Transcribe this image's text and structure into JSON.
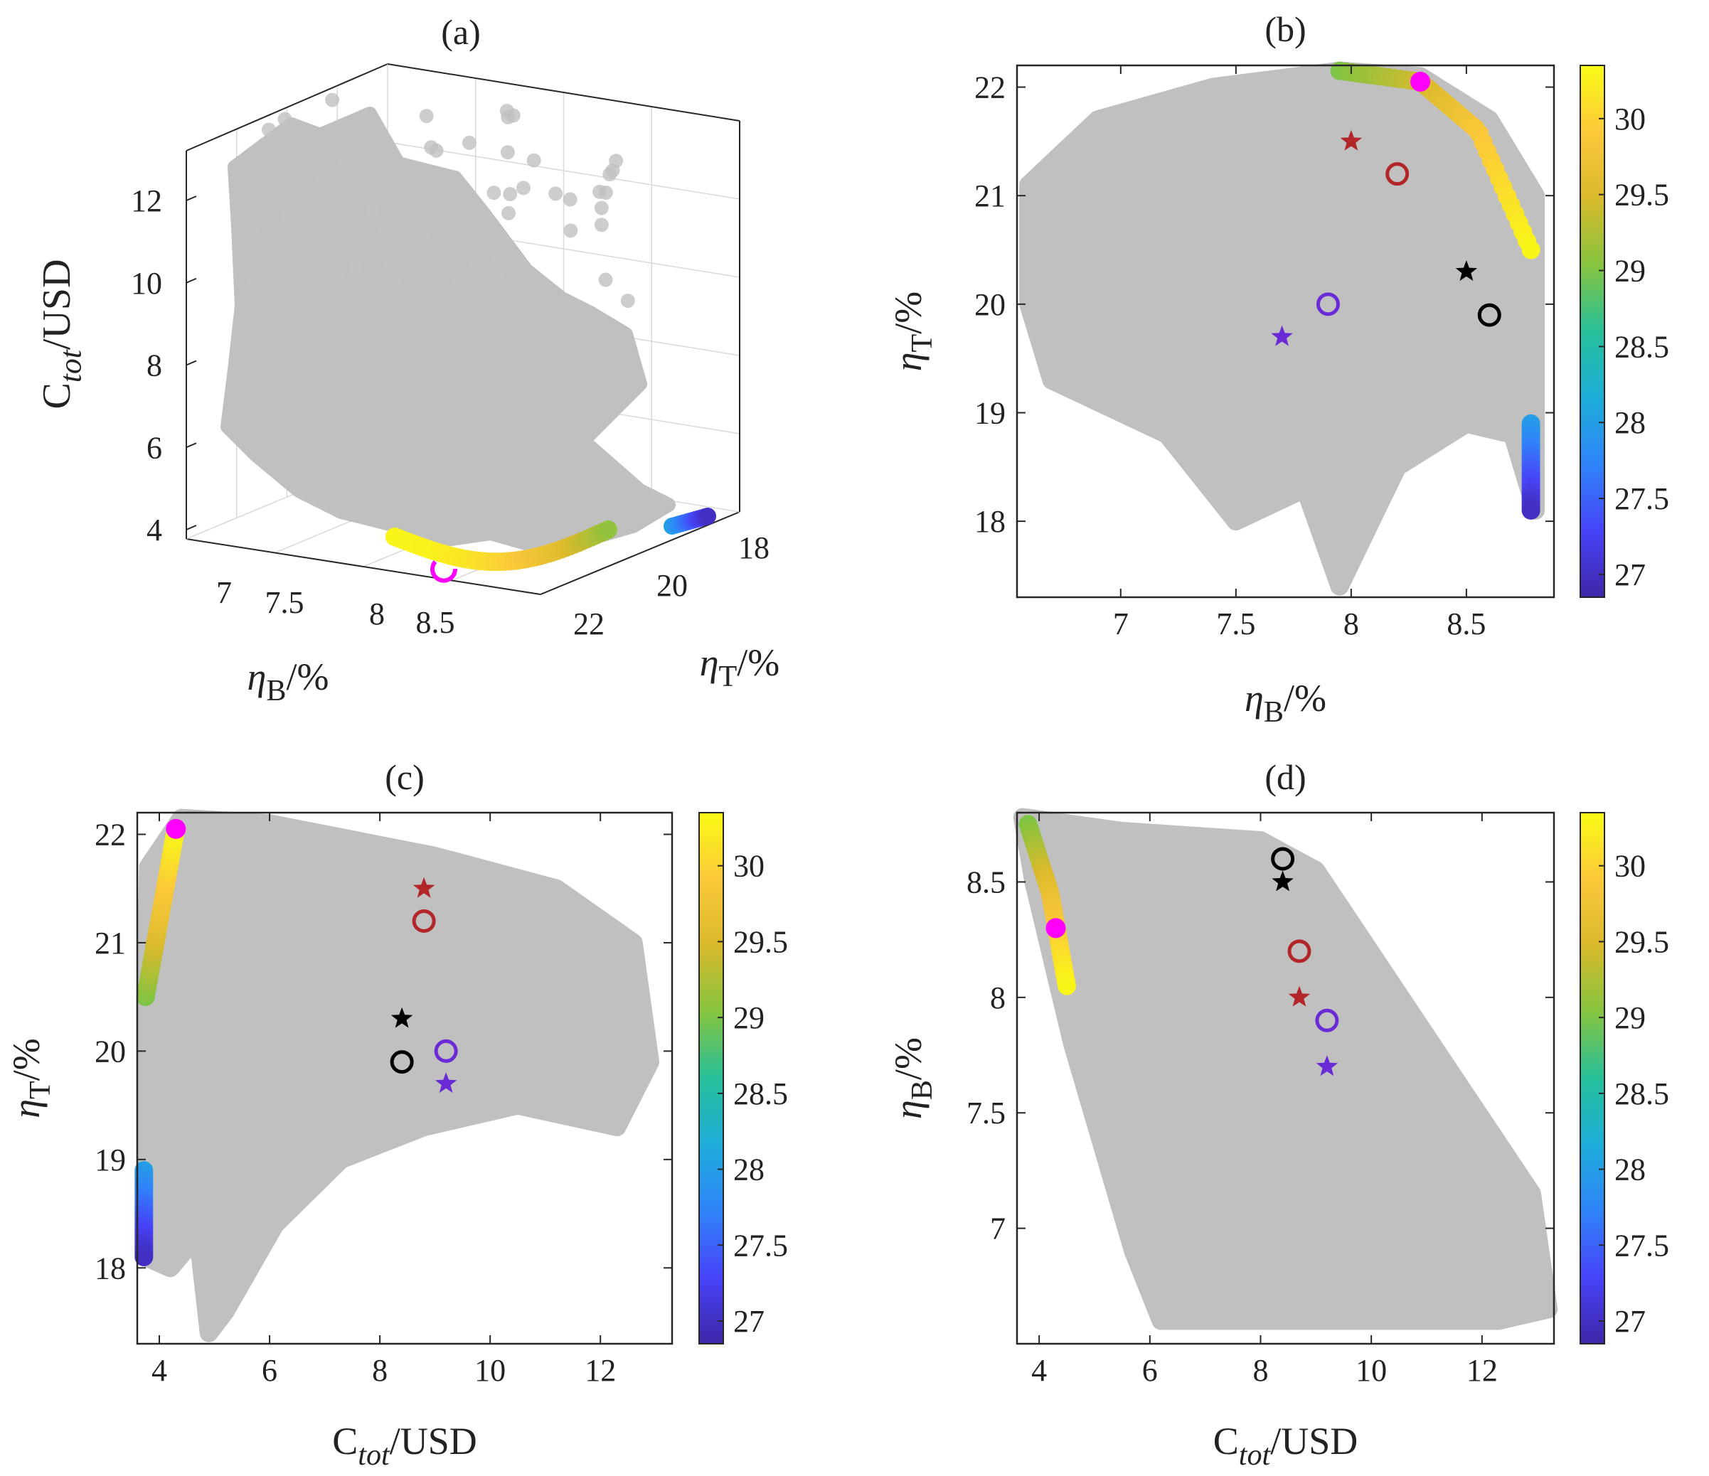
{
  "colors": {
    "cloud": "#c0c0c0",
    "axis": "#262626",
    "grid": "#d9d9d9",
    "magenta": "#ff00ff",
    "red_marker": "#b2262a",
    "black_marker": "#000000",
    "purple_marker": "#6a2bd6",
    "colormap": [
      "#3e26a8",
      "#4743f8",
      "#2f84f9",
      "#1eadd9",
      "#27c09a",
      "#86c43f",
      "#d9ba2c",
      "#fcc93a",
      "#f9fb15"
    ]
  },
  "chart_data": [
    {
      "id": "a",
      "type": "scatter3d",
      "title": "(a)",
      "xlabel": {
        "main": "η",
        "sub": "B",
        "unit": "/%"
      },
      "ylabel": {
        "main": "η",
        "sub": "T",
        "unit": "/%"
      },
      "zlabel": {
        "main": "C",
        "sub": "tot",
        "unit": "/USD"
      },
      "x_ticks": [
        "7",
        "7.5",
        "8",
        "8.5"
      ],
      "y_ticks": [
        "18",
        "20",
        "22"
      ],
      "z_ticks": [
        "4",
        "6",
        "8",
        "10",
        "12"
      ],
      "grid": true,
      "front_color_range": [
        27,
        30.4
      ]
    },
    {
      "id": "b",
      "type": "scatter",
      "title": "(b)",
      "xlabel": {
        "main": "η",
        "sub": "B",
        "unit": "/%"
      },
      "ylabel": {
        "main": "η",
        "sub": "T",
        "unit": "/%"
      },
      "xlim": [
        6.55,
        8.88
      ],
      "ylim": [
        17.3,
        22.2
      ],
      "x_ticks": [
        "7",
        "7.5",
        "8",
        "8.5"
      ],
      "y_ticks": [
        "18",
        "19",
        "20",
        "21",
        "22"
      ],
      "grid": false,
      "colorbar": {
        "min": 26.85,
        "max": 30.35,
        "ticks": [
          "27",
          "27.5",
          "28",
          "28.5",
          "29",
          "29.5",
          "30"
        ]
      },
      "front_segments": [
        {
          "color_from": 29.0,
          "color_to": 30.3,
          "points": [
            [
              7.95,
              22.15
            ],
            [
              8.3,
              22.05
            ],
            [
              8.55,
              21.6
            ],
            [
              8.78,
              20.5
            ]
          ]
        },
        {
          "color_from": 28.0,
          "color_to": 27.0,
          "points": [
            [
              8.78,
              18.9
            ],
            [
              8.78,
              18.1
            ]
          ]
        }
      ],
      "markers": [
        {
          "symbol": "dot",
          "color": "magenta",
          "x": 8.3,
          "y": 22.05
        },
        {
          "symbol": "star",
          "color": "red",
          "x": 8.0,
          "y": 21.5
        },
        {
          "symbol": "circle",
          "color": "red",
          "x": 8.2,
          "y": 21.2
        },
        {
          "symbol": "star",
          "color": "black",
          "x": 8.5,
          "y": 20.3
        },
        {
          "symbol": "circle",
          "color": "black",
          "x": 8.6,
          "y": 19.9
        },
        {
          "symbol": "circle",
          "color": "purple",
          "x": 7.9,
          "y": 20.0
        },
        {
          "symbol": "star",
          "color": "purple",
          "x": 7.7,
          "y": 19.7
        }
      ]
    },
    {
      "id": "c",
      "type": "scatter",
      "title": "(c)",
      "xlabel": {
        "main": "C",
        "sub": "tot",
        "unit": "/USD"
      },
      "ylabel": {
        "main": "η",
        "sub": "T",
        "unit": "/%"
      },
      "xlim": [
        3.6,
        13.3
      ],
      "ylim": [
        17.3,
        22.2
      ],
      "x_ticks": [
        "4",
        "6",
        "8",
        "10",
        "12"
      ],
      "y_ticks": [
        "18",
        "19",
        "20",
        "21",
        "22"
      ],
      "grid": false,
      "colorbar": {
        "min": 26.85,
        "max": 30.35,
        "ticks": [
          "27",
          "27.5",
          "28",
          "28.5",
          "29",
          "29.5",
          "30"
        ]
      },
      "front_segments": [
        {
          "color_from": 29.0,
          "color_to": 30.3,
          "points": [
            [
              3.75,
              20.5
            ],
            [
              4.0,
              21.2
            ],
            [
              4.3,
              22.05
            ]
          ]
        },
        {
          "color_from": 28.0,
          "color_to": 27.0,
          "points": [
            [
              3.72,
              18.9
            ],
            [
              3.72,
              18.1
            ]
          ]
        }
      ],
      "markers": [
        {
          "symbol": "dot",
          "color": "magenta",
          "x": 4.3,
          "y": 22.05
        },
        {
          "symbol": "star",
          "color": "red",
          "x": 8.8,
          "y": 21.5
        },
        {
          "symbol": "circle",
          "color": "red",
          "x": 8.8,
          "y": 21.2
        },
        {
          "symbol": "star",
          "color": "black",
          "x": 8.4,
          "y": 20.3
        },
        {
          "symbol": "circle",
          "color": "black",
          "x": 8.4,
          "y": 19.9
        },
        {
          "symbol": "circle",
          "color": "purple",
          "x": 9.2,
          "y": 20.0
        },
        {
          "symbol": "star",
          "color": "purple",
          "x": 9.2,
          "y": 19.7
        }
      ]
    },
    {
      "id": "d",
      "type": "scatter",
      "title": "(d)",
      "xlabel": {
        "main": "C",
        "sub": "tot",
        "unit": "/USD"
      },
      "ylabel": {
        "main": "η",
        "sub": "B",
        "unit": "/%"
      },
      "xlim": [
        3.6,
        13.3
      ],
      "ylim": [
        6.5,
        8.8
      ],
      "x_ticks": [
        "4",
        "6",
        "8",
        "10",
        "12"
      ],
      "y_ticks": [
        "7",
        "7.5",
        "8",
        "8.5"
      ],
      "grid": false,
      "colorbar": {
        "min": 26.85,
        "max": 30.35,
        "ticks": [
          "27",
          "27.5",
          "28",
          "28.5",
          "29",
          "29.5",
          "30"
        ]
      },
      "front_segments": [
        {
          "color_from": 29.0,
          "color_to": 30.3,
          "points": [
            [
              3.8,
              8.75
            ],
            [
              4.2,
              8.45
            ],
            [
              4.5,
              8.05
            ]
          ]
        }
      ],
      "markers": [
        {
          "symbol": "dot",
          "color": "magenta",
          "x": 4.3,
          "y": 8.3
        },
        {
          "symbol": "circle",
          "color": "black",
          "x": 8.4,
          "y": 8.6
        },
        {
          "symbol": "star",
          "color": "black",
          "x": 8.4,
          "y": 8.5
        },
        {
          "symbol": "circle",
          "color": "red",
          "x": 8.7,
          "y": 8.2
        },
        {
          "symbol": "star",
          "color": "red",
          "x": 8.7,
          "y": 8.0
        },
        {
          "symbol": "circle",
          "color": "purple",
          "x": 9.2,
          "y": 7.9
        },
        {
          "symbol": "star",
          "color": "purple",
          "x": 9.2,
          "y": 7.7
        }
      ]
    }
  ]
}
